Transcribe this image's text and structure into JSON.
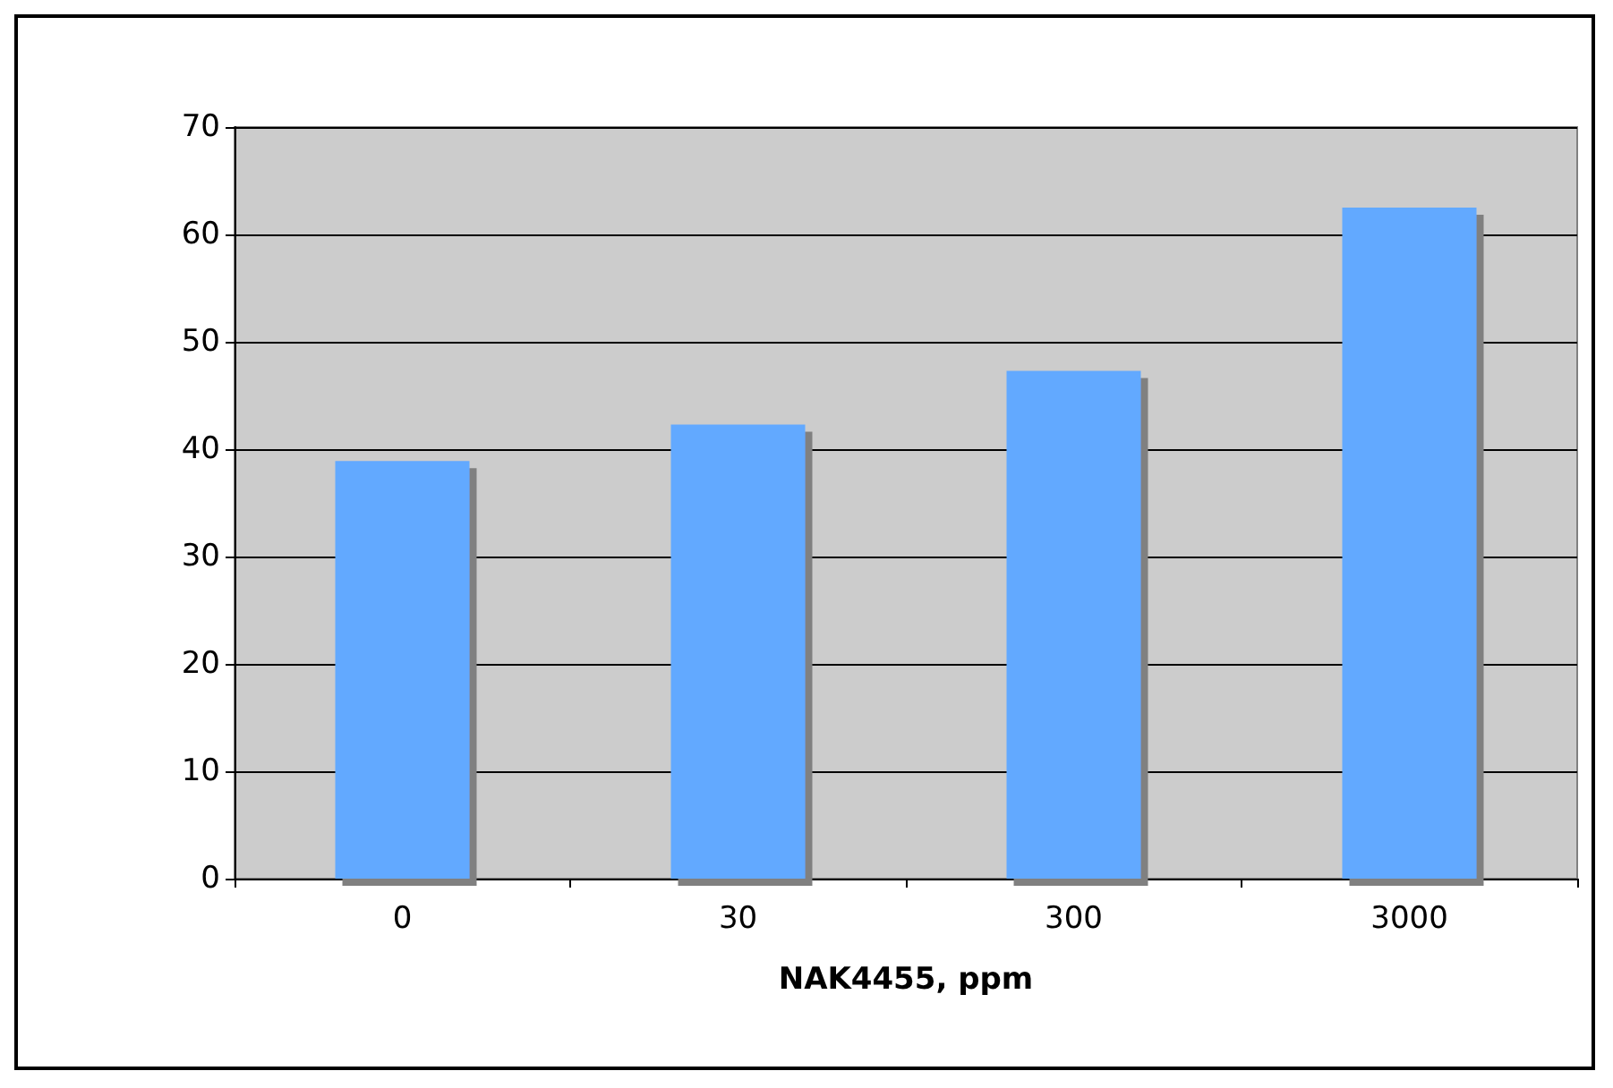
{
  "chart_data": {
    "type": "bar",
    "xlabel": "NAK4455, ppm",
    "categories": [
      "0",
      "30",
      "300",
      "3000"
    ],
    "values": [
      38.9,
      42.3,
      47.3,
      62.5
    ],
    "color": "#62a9ff",
    "ylim": [
      0,
      70
    ],
    "yticks": [
      0,
      10,
      20,
      30,
      40,
      50,
      60,
      70
    ],
    "grid": "y"
  }
}
